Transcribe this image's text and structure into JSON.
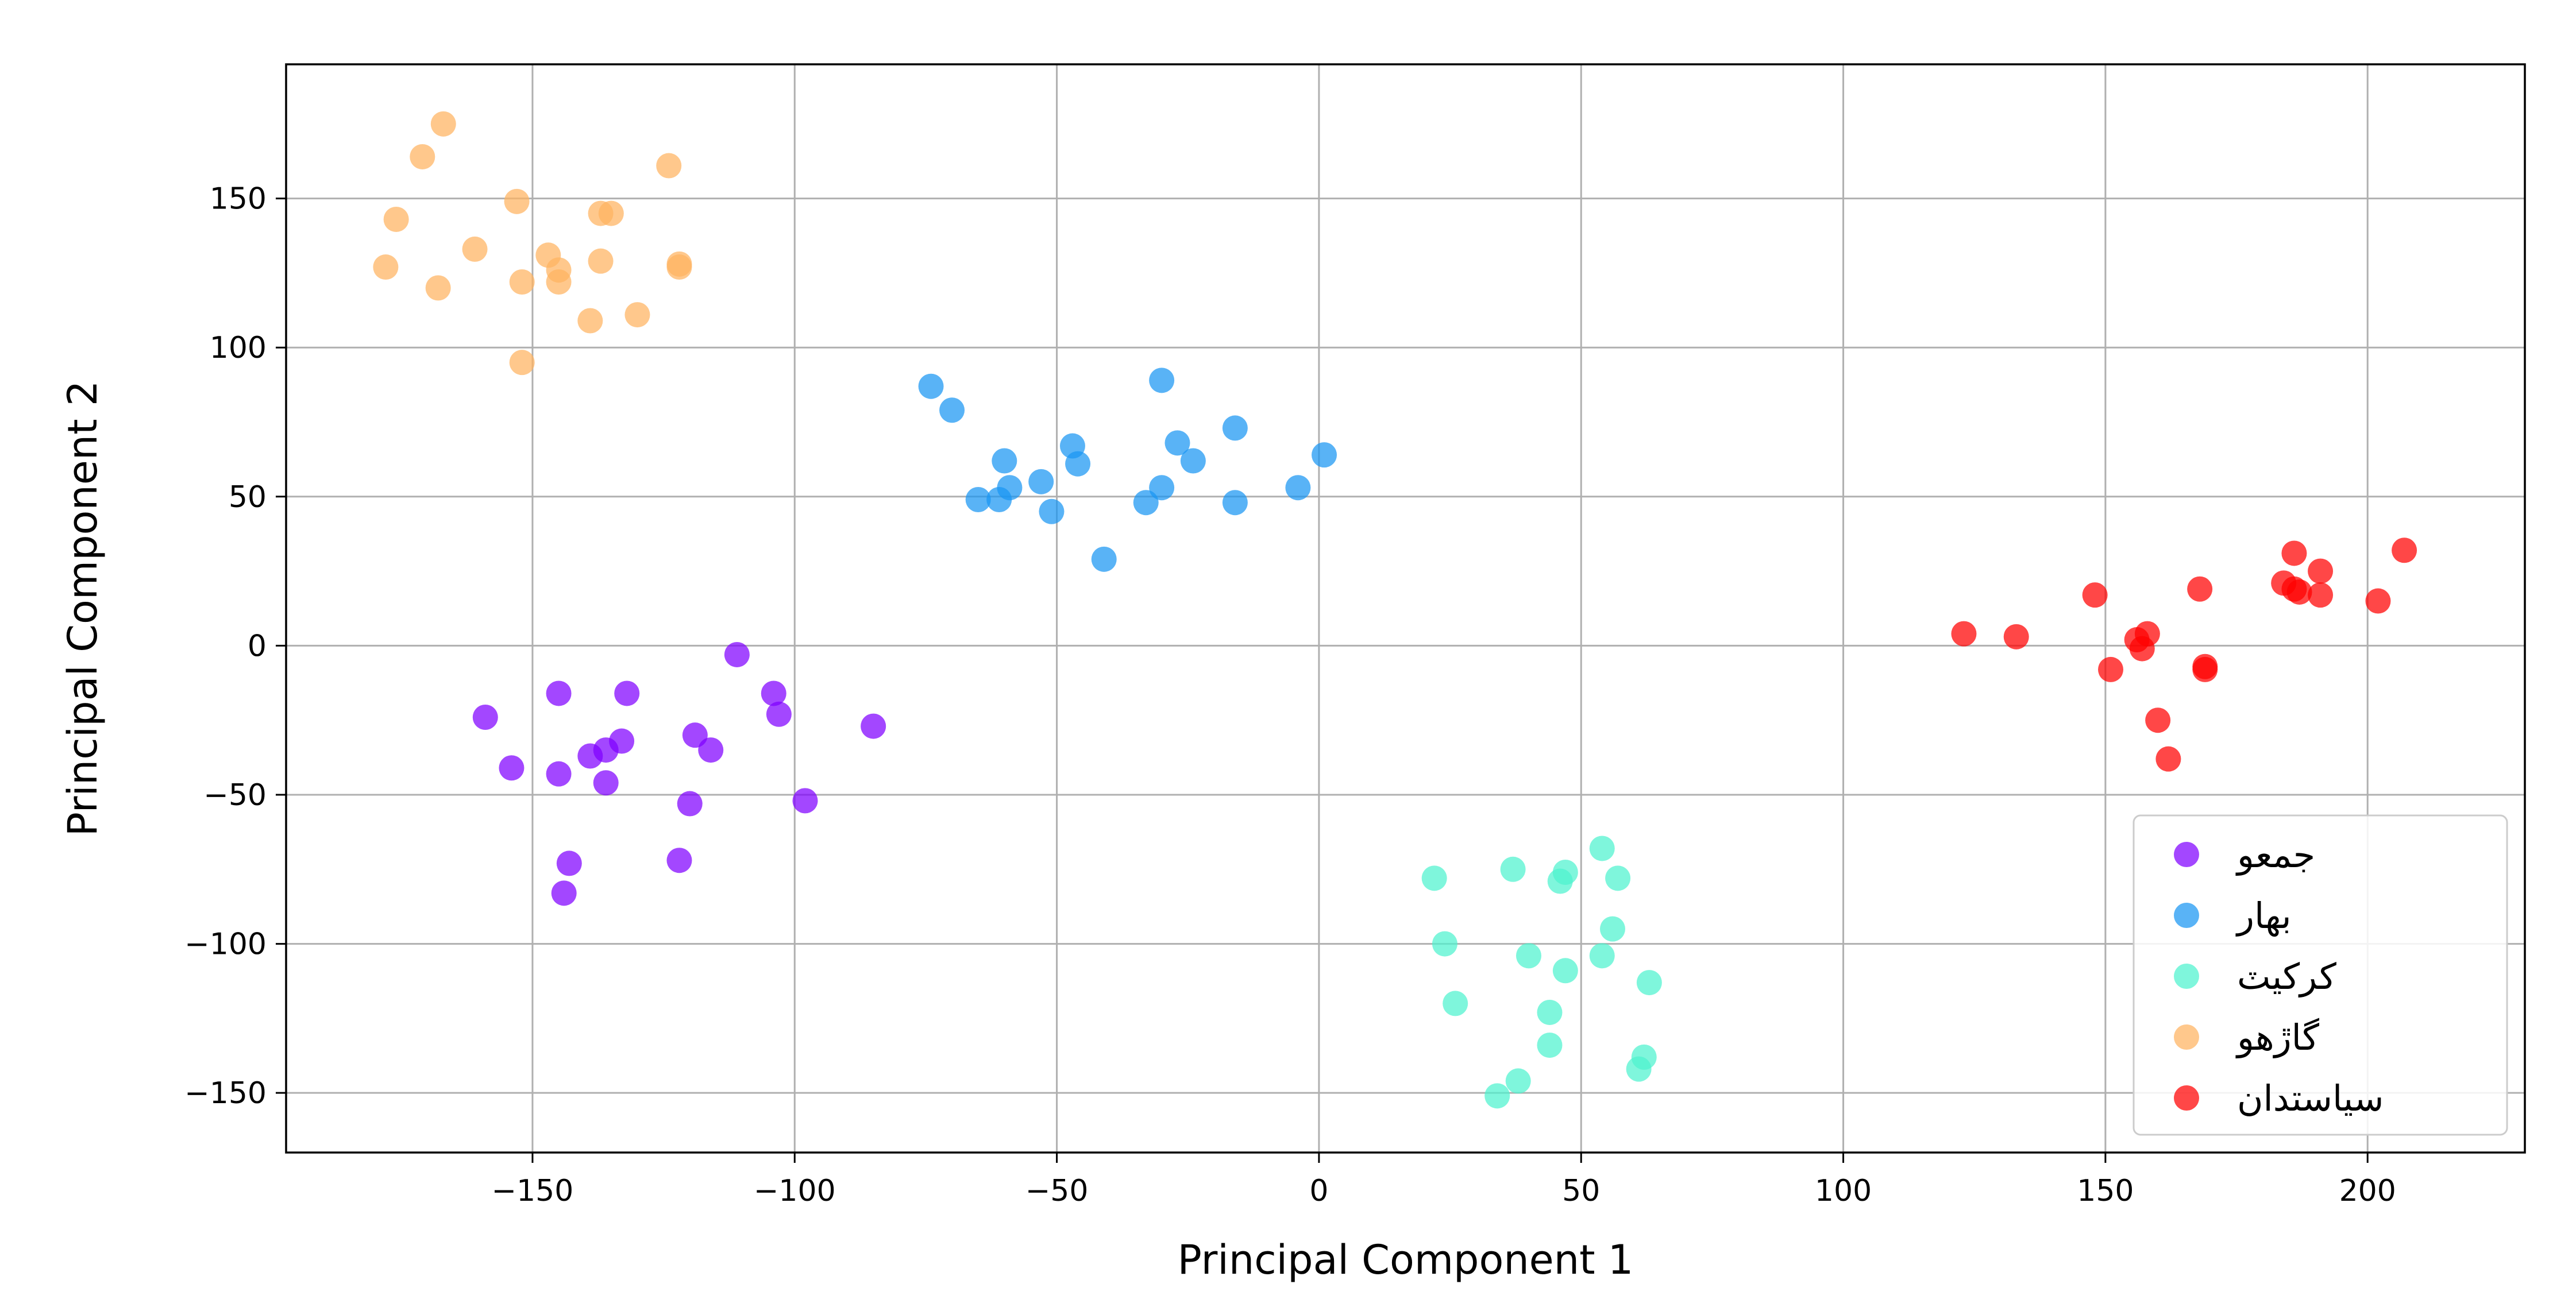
{
  "chart_data": {
    "type": "scatter",
    "xlabel": "Principal Component 1",
    "ylabel": "Principal Component 2",
    "xlim": [
      -197,
      230
    ],
    "ylim": [
      -170,
      195
    ],
    "x_ticks": [
      -150,
      -100,
      -50,
      0,
      50,
      100,
      150,
      200
    ],
    "y_ticks": [
      -150,
      -100,
      -50,
      0,
      50,
      100,
      150
    ],
    "x_tick_labels": [
      "−150",
      "−100",
      "−50",
      "0",
      "50",
      "100",
      "150",
      "200"
    ],
    "y_tick_labels": [
      "−150",
      "−100",
      "−50",
      "0",
      "50",
      "100",
      "150"
    ],
    "grid": true,
    "legend_position": "lower-right",
    "series": [
      {
        "name": "جمعو",
        "color": "#8000ff",
        "points": [
          [
            -159,
            -24
          ],
          [
            -154,
            -41
          ],
          [
            -145,
            -16
          ],
          [
            -145,
            -43
          ],
          [
            -143,
            -73
          ],
          [
            -144,
            -83
          ],
          [
            -139,
            -37
          ],
          [
            -136,
            -35
          ],
          [
            -133,
            -32
          ],
          [
            -136,
            -46
          ],
          [
            -132,
            -16
          ],
          [
            -119,
            -30
          ],
          [
            -116,
            -35
          ],
          [
            -122,
            -72
          ],
          [
            -120,
            -53
          ],
          [
            -111,
            -3
          ],
          [
            -104,
            -16
          ],
          [
            -103,
            -23
          ],
          [
            -98,
            -52
          ],
          [
            -85,
            -27
          ]
        ]
      },
      {
        "name": "بهار",
        "color": "#1996f3",
        "points": [
          [
            -74,
            87
          ],
          [
            -70,
            79
          ],
          [
            -65,
            49
          ],
          [
            -61,
            49
          ],
          [
            -60,
            62
          ],
          [
            -59,
            53
          ],
          [
            -53,
            55
          ],
          [
            -51,
            45
          ],
          [
            -47,
            67
          ],
          [
            -46,
            61
          ],
          [
            -41,
            29
          ],
          [
            -33,
            48
          ],
          [
            -30,
            89
          ],
          [
            -30,
            53
          ],
          [
            -27,
            68
          ],
          [
            -24,
            62
          ],
          [
            -16,
            73
          ],
          [
            -16,
            48
          ],
          [
            -4,
            53
          ],
          [
            1,
            64
          ]
        ]
      },
      {
        "name": "کرکيٽ",
        "color": "#4df3ce",
        "points": [
          [
            22,
            -78
          ],
          [
            24,
            -100
          ],
          [
            26,
            -120
          ],
          [
            34,
            -151
          ],
          [
            37,
            -75
          ],
          [
            38,
            -146
          ],
          [
            40,
            -104
          ],
          [
            44,
            -123
          ],
          [
            44,
            -134
          ],
          [
            46,
            -79
          ],
          [
            47,
            -76
          ],
          [
            47,
            -109
          ],
          [
            54,
            -68
          ],
          [
            54,
            -104
          ],
          [
            56,
            -95
          ],
          [
            57,
            -78
          ],
          [
            61,
            -142
          ],
          [
            62,
            -138
          ],
          [
            63,
            -113
          ]
        ]
      },
      {
        "name": "گاڙهو",
        "color": "#ffb360",
        "points": [
          [
            -178,
            127
          ],
          [
            -176,
            143
          ],
          [
            -171,
            164
          ],
          [
            -168,
            120
          ],
          [
            -167,
            175
          ],
          [
            -161,
            133
          ],
          [
            -153,
            149
          ],
          [
            -152,
            122
          ],
          [
            -152,
            95
          ],
          [
            -147,
            131
          ],
          [
            -145,
            126
          ],
          [
            -145,
            122
          ],
          [
            -139,
            109
          ],
          [
            -137,
            129
          ],
          [
            -137,
            145
          ],
          [
            -135,
            145
          ],
          [
            -130,
            111
          ],
          [
            -124,
            161
          ],
          [
            -122,
            128
          ],
          [
            -122,
            127
          ]
        ]
      },
      {
        "name": "سياستدان",
        "color": "#ff0000",
        "points": [
          [
            123,
            4
          ],
          [
            133,
            3
          ],
          [
            148,
            17
          ],
          [
            151,
            -8
          ],
          [
            156,
            2
          ],
          [
            157,
            -1
          ],
          [
            158,
            4
          ],
          [
            160,
            -25
          ],
          [
            162,
            -38
          ],
          [
            168,
            19
          ],
          [
            169,
            -7
          ],
          [
            169,
            -8
          ],
          [
            184,
            21
          ],
          [
            186,
            31
          ],
          [
            186,
            19
          ],
          [
            187,
            18
          ],
          [
            191,
            17
          ],
          [
            191,
            25
          ],
          [
            202,
            15
          ],
          [
            207,
            32
          ]
        ]
      }
    ]
  }
}
